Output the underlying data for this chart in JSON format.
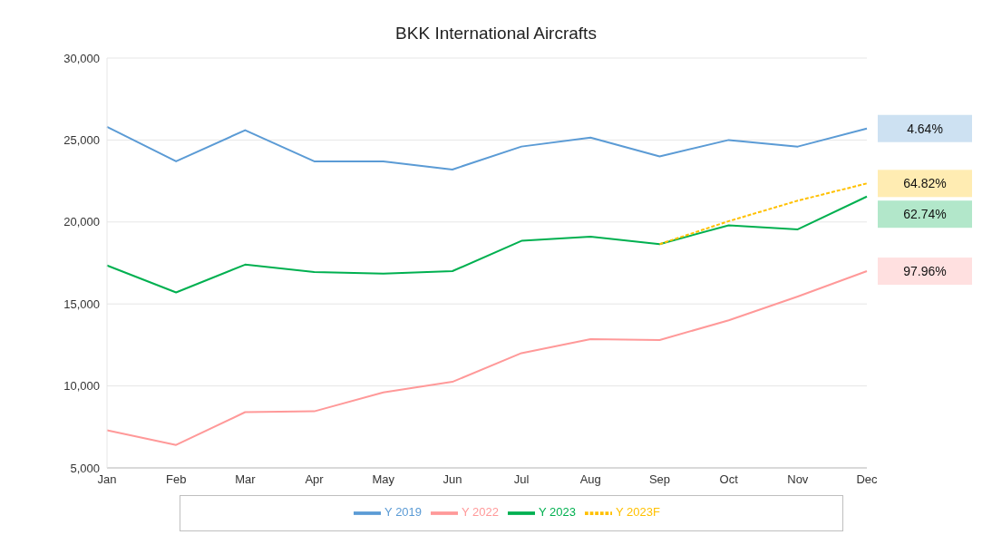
{
  "chart_data": {
    "type": "line",
    "title": "BKK International Aircrafts",
    "categories": [
      "Jan",
      "Feb",
      "Mar",
      "Apr",
      "May",
      "Jun",
      "Jul",
      "Aug",
      "Sep",
      "Oct",
      "Nov",
      "Dec"
    ],
    "series": [
      {
        "name": "Y 2019",
        "color": "#5b9bd5",
        "values": [
          25800,
          23700,
          25600,
          23700,
          23700,
          23200,
          24600,
          25150,
          24000,
          25000,
          24600,
          25700
        ]
      },
      {
        "name": "Y 2022",
        "color": "#ff9999",
        "values": [
          7300,
          6400,
          8400,
          8450,
          9600,
          10250,
          12000,
          12850,
          12800,
          14000,
          15450,
          17000
        ]
      },
      {
        "name": "Y 2023F",
        "color": "#ffc000",
        "line_style": "dashed",
        "values": [
          null,
          null,
          null,
          null,
          null,
          null,
          null,
          null,
          18650,
          20050,
          21300,
          22350
        ]
      },
      {
        "name": "Y 2023",
        "color": "#00b050",
        "values": [
          17350,
          15700,
          17400,
          16950,
          16850,
          17000,
          18850,
          19100,
          18650,
          19800,
          19550,
          21550
        ]
      }
    ],
    "annotations": [
      "4.64%",
      "97.96%",
      "64.82%",
      "62.74%"
    ],
    "ylim": [
      5000,
      30000
    ],
    "yticks": [
      {
        "value": 5000,
        "label": "5,000"
      },
      {
        "value": 10000,
        "label": "10,000"
      },
      {
        "value": 15000,
        "label": "15,000"
      },
      {
        "value": 20000,
        "label": "20,000"
      },
      {
        "value": 25000,
        "label": "25,000"
      },
      {
        "value": 30000,
        "label": "30,000"
      }
    ],
    "grid": "y",
    "legend": "bottom",
    "marker": "none",
    "line_style": "solid"
  }
}
